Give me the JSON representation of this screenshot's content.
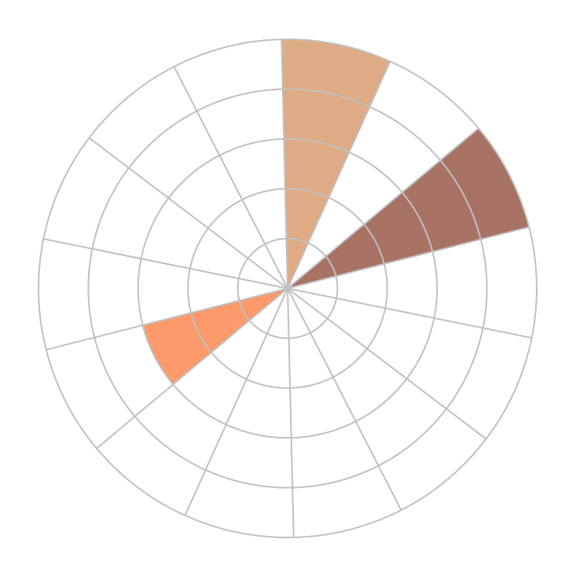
{
  "chart_data": {
    "type": "polar-bar",
    "categories": [
      null,
      null,
      null,
      null,
      null,
      null,
      null,
      null,
      null,
      null,
      null,
      null,
      null,
      null
    ],
    "values": [
      5,
      0,
      5,
      0,
      0,
      0,
      0,
      0,
      0,
      3,
      0,
      0,
      0,
      0
    ],
    "colors": [
      "#dfab84",
      null,
      "#a87264",
      null,
      null,
      null,
      null,
      null,
      null,
      "#fc9a6b",
      null,
      null,
      null,
      null
    ],
    "rlim": [
      0,
      5
    ],
    "rticks": [
      1,
      2,
      3,
      4,
      5
    ],
    "grid": true
  }
}
